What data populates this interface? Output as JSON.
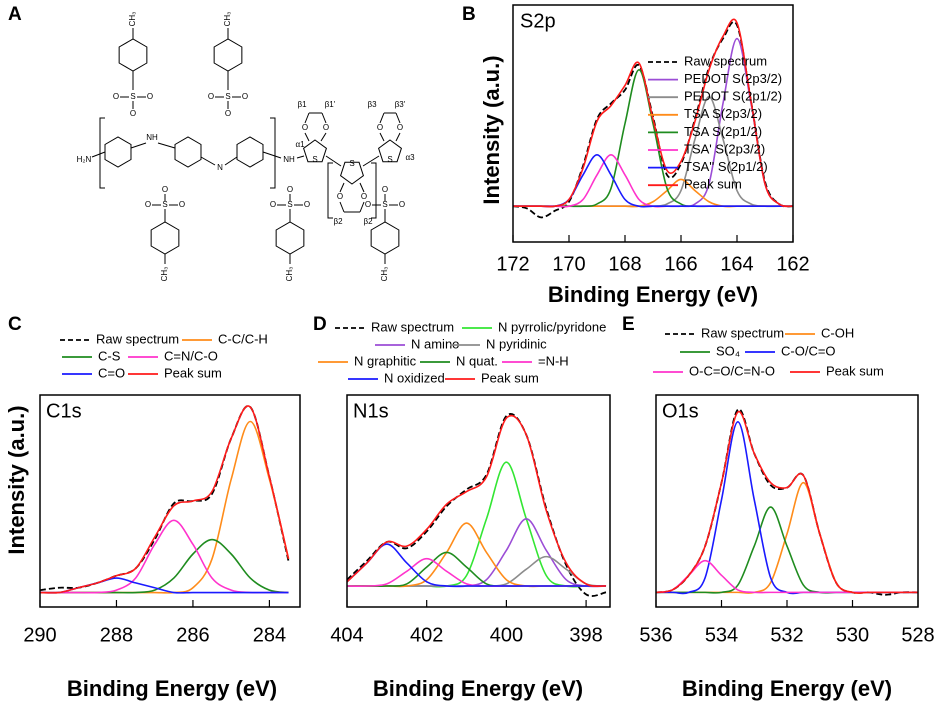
{
  "structure": {
    "panel": "A",
    "methyl": "CH₃",
    "sulfur": "S",
    "oxygen": "O",
    "amine": "NH",
    "imine": "N",
    "terminal": "H₂N",
    "greek": [
      "β1",
      "β1'",
      "β2",
      "β3",
      "β3'",
      "α1",
      "α3"
    ]
  },
  "chart_data": [
    {
      "type": "line",
      "panel": "B",
      "title": "S2p",
      "xlabel": "Binding Energy (eV)",
      "ylabel": "Intensity (a.u.)",
      "x": [
        172,
        171.5,
        171,
        170.5,
        170,
        169.5,
        169,
        168.5,
        168,
        167.5,
        167,
        166.5,
        166,
        165.5,
        165,
        164.5,
        164,
        163.5,
        163,
        162.5,
        162
      ],
      "xlim": [
        172,
        162
      ],
      "xticks": [
        172,
        170,
        168,
        166,
        164,
        162
      ],
      "ylim": [
        0,
        106
      ],
      "legend": "right",
      "series": [
        {
          "name": "Raw spectrum",
          "color": "#000000",
          "style": "dashed",
          "values": [
            16,
            15,
            11,
            14,
            18,
            34,
            55,
            62,
            68,
            79,
            56,
            30,
            35,
            55,
            78,
            91,
            97,
            63,
            27,
            17,
            16
          ]
        },
        {
          "name": "PEDOT S(2p3/2)",
          "color": "#9b4dd6",
          "values": [
            16,
            16,
            16,
            16,
            16,
            16,
            16,
            16,
            16,
            16,
            16,
            16,
            16,
            17,
            26,
            62,
            91,
            62,
            26,
            17,
            16
          ]
        },
        {
          "name": "PEDOT S(2p1/2)",
          "color": "#8c8c8c",
          "values": [
            16,
            16,
            16,
            16,
            16,
            16,
            16,
            16,
            16,
            16,
            16,
            17,
            23,
            46,
            65,
            46,
            23,
            17,
            16,
            16,
            16
          ]
        },
        {
          "name": "TSA S(2p3/2)",
          "color": "#ff8c1a",
          "values": [
            16,
            16,
            16,
            16,
            16,
            16,
            16,
            16,
            16,
            16,
            18,
            23,
            28,
            23,
            18,
            16,
            16,
            16,
            16,
            16,
            16
          ]
        },
        {
          "name": "TSA S(2p1/2)",
          "color": "#1f8c1f",
          "values": [
            16,
            16,
            16,
            16,
            16,
            16,
            17,
            24,
            53,
            77,
            53,
            24,
            17,
            16,
            16,
            16,
            16,
            16,
            16,
            16,
            16
          ]
        },
        {
          "name": "TSA' S(2p3/2)",
          "color": "#ff33cc",
          "values": [
            16,
            16,
            16,
            16,
            16,
            19,
            30,
            39,
            30,
            19,
            16,
            16,
            16,
            16,
            16,
            16,
            16,
            16,
            16,
            16,
            16
          ]
        },
        {
          "name": "TSA'' S(2p1/2)",
          "color": "#1a1aff",
          "values": [
            16,
            16,
            16,
            16,
            19,
            30,
            39,
            30,
            19,
            16,
            16,
            16,
            16,
            16,
            16,
            16,
            16,
            16,
            16,
            16,
            16
          ]
        },
        {
          "name": "Peak sum",
          "color": "#ff1a1a",
          "values": [
            16,
            16,
            16,
            16,
            19,
            33,
            54,
            61,
            70,
            80,
            55,
            32,
            36,
            54,
            77,
            92,
            98,
            63,
            26,
            17,
            16
          ]
        }
      ]
    },
    {
      "type": "line",
      "panel": "C",
      "title": "C1s",
      "xlabel": "Binding Energy (eV)",
      "ylabel": "Intensity (a.u.)",
      "x": [
        290,
        289.5,
        289,
        288.5,
        288,
        287.5,
        287,
        286.5,
        286,
        285.5,
        285,
        284.5,
        284,
        283.5
      ],
      "xlim": [
        290,
        283.2
      ],
      "xticks": [
        290,
        288,
        286,
        284
      ],
      "ylim": [
        0,
        88
      ],
      "legend": "top",
      "series": [
        {
          "name": "Raw spectrum",
          "color": "#000000",
          "style": "dashed",
          "values": [
            7,
            8,
            8,
            10,
            13,
            16,
            28,
            43,
            44,
            47,
            70,
            83,
            54,
            19
          ]
        },
        {
          "name": "C-C/C-H",
          "color": "#ff8c1a",
          "values": [
            6,
            6,
            6,
            6,
            6,
            6,
            6,
            6,
            8,
            20,
            53,
            77,
            53,
            20
          ]
        },
        {
          "name": "C-S",
          "color": "#1f8c1f",
          "values": [
            6,
            6,
            6,
            6,
            6,
            6,
            7,
            12,
            22,
            28,
            22,
            12,
            7,
            6
          ]
        },
        {
          "name": "C=N/C-O",
          "color": "#ff33cc",
          "values": [
            6,
            6,
            6,
            6,
            7,
            12,
            26,
            36,
            26,
            12,
            7,
            6,
            6,
            6
          ]
        },
        {
          "name": "C=O",
          "color": "#1a1aff",
          "values": [
            6,
            6,
            8,
            10,
            12,
            10,
            8,
            6,
            6,
            6,
            6,
            6,
            6,
            6
          ]
        },
        {
          "name": "Peak sum",
          "color": "#ff1a1a",
          "values": [
            6,
            6,
            8,
            10,
            13,
            16,
            29,
            42,
            44,
            48,
            70,
            83,
            54,
            20
          ]
        }
      ]
    },
    {
      "type": "line",
      "panel": "D",
      "title": "N1s",
      "xlabel": "Binding Energy (eV)",
      "x": [
        404,
        403.5,
        403,
        402.5,
        402,
        401.5,
        401,
        400.5,
        400,
        399.5,
        399,
        398.5,
        398,
        397.5
      ],
      "xlim": [
        404,
        397.4
      ],
      "xticks": [
        404,
        402,
        400,
        398
      ],
      "ylim": [
        0,
        101
      ],
      "legend": "top",
      "series": [
        {
          "name": "Raw spectrum",
          "color": "#000000",
          "style": "dashed",
          "values": [
            13,
            22,
            31,
            28,
            36,
            48,
            56,
            63,
            91,
            82,
            47,
            20,
            6,
            7
          ]
        },
        {
          "name": "N pyrrolic/pyridone",
          "color": "#33e633",
          "values": [
            10,
            10,
            10,
            10,
            10,
            10,
            15,
            42,
            69,
            42,
            15,
            10,
            10,
            10
          ]
        },
        {
          "name": "N amino",
          "color": "#9b4dd6",
          "values": [
            10,
            10,
            10,
            10,
            10,
            10,
            10,
            13,
            27,
            42,
            27,
            13,
            10,
            10
          ]
        },
        {
          "name": "N pyridinic",
          "color": "#8c8c8c",
          "values": [
            10,
            10,
            10,
            10,
            10,
            10,
            10,
            10,
            11,
            18,
            24,
            18,
            11,
            10
          ]
        },
        {
          "name": "N graphitic",
          "color": "#ff8c1a",
          "values": [
            10,
            10,
            10,
            10,
            13,
            26,
            40,
            26,
            13,
            10,
            10,
            10,
            10,
            10
          ]
        },
        {
          "name": "N quat.",
          "color": "#1f8c1f",
          "values": [
            10,
            10,
            10,
            11,
            19,
            26,
            19,
            11,
            10,
            10,
            10,
            10,
            10,
            10
          ]
        },
        {
          "name": "=N-H",
          "color": "#ff33cc",
          "values": [
            10,
            10,
            11,
            17,
            23,
            17,
            11,
            10,
            10,
            10,
            10,
            10,
            10,
            10
          ]
        },
        {
          "name": "N oxidized",
          "color": "#1a1aff",
          "values": [
            12,
            21,
            30,
            21,
            12,
            10,
            10,
            10,
            10,
            10,
            10,
            10,
            10,
            10
          ]
        },
        {
          "name": "Peak sum",
          "color": "#ff1a1a",
          "values": [
            12,
            21,
            31,
            29,
            37,
            49,
            55,
            62,
            90,
            82,
            46,
            21,
            11,
            10
          ]
        }
      ]
    },
    {
      "type": "line",
      "panel": "E",
      "title": "O1s",
      "xlabel": "Binding Energy (eV)",
      "x": [
        536,
        535.5,
        535,
        534.5,
        534,
        533.5,
        533,
        532.5,
        532,
        531.5,
        531,
        530.5,
        530,
        529.5,
        529,
        528.5,
        528
      ],
      "xlim": [
        536,
        528
      ],
      "xticks": [
        536,
        534,
        532,
        530,
        528
      ],
      "ylim": [
        0,
        87
      ],
      "legend": "top",
      "series": [
        {
          "name": "Raw spectrum",
          "color": "#000000",
          "style": "dashed",
          "values": [
            6,
            7,
            13,
            25,
            51,
            81,
            63,
            50,
            49,
            54,
            30,
            10,
            6,
            6,
            5,
            6,
            6
          ]
        },
        {
          "name": "C-OH",
          "color": "#ff8c1a",
          "values": [
            6,
            6,
            6,
            6,
            6,
            6,
            6,
            10,
            30,
            51,
            30,
            10,
            6,
            6,
            6,
            6,
            6
          ]
        },
        {
          "name": "SO₄",
          "color": "#1f8c1f",
          "values": [
            6,
            6,
            6,
            6,
            6,
            9,
            25,
            41,
            25,
            9,
            6,
            6,
            6,
            6,
            6,
            6,
            6
          ]
        },
        {
          "name": "C-O/C=O",
          "color": "#1a1aff",
          "values": [
            6,
            6,
            6,
            12,
            44,
            76,
            44,
            12,
            6,
            6,
            6,
            6,
            6,
            6,
            6,
            6,
            6
          ]
        },
        {
          "name": "O-C=O/C=N-O",
          "color": "#ff33cc",
          "values": [
            6,
            7,
            13,
            19,
            13,
            7,
            6,
            6,
            6,
            6,
            6,
            6,
            6,
            6,
            6,
            6,
            6
          ]
        },
        {
          "name": "Peak sum",
          "color": "#ff1a1a",
          "values": [
            6,
            7,
            13,
            25,
            51,
            80,
            63,
            51,
            49,
            54,
            30,
            10,
            6,
            6,
            6,
            6,
            6
          ]
        }
      ]
    }
  ]
}
